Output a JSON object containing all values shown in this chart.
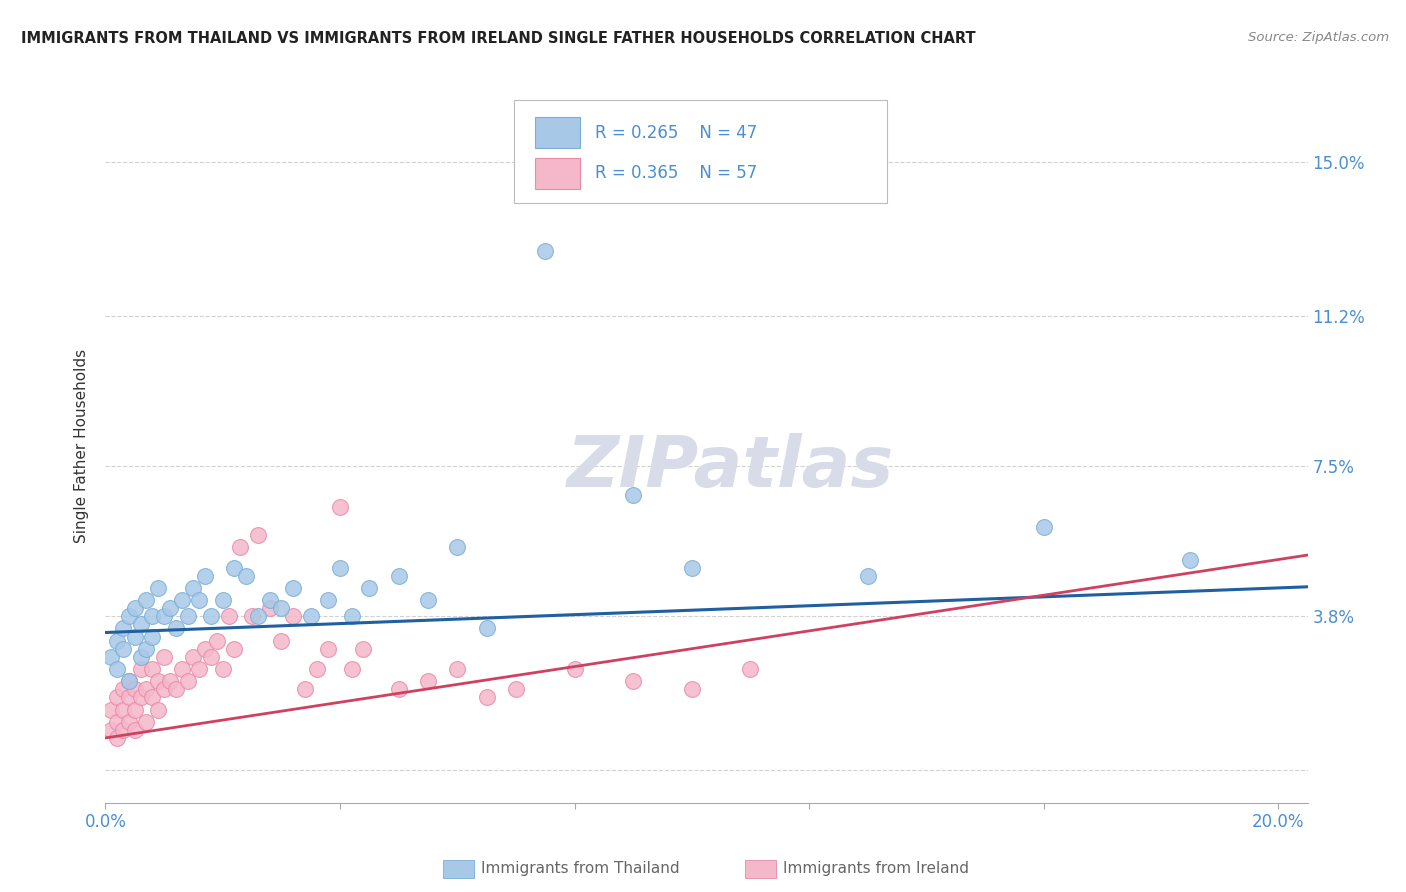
{
  "title": "IMMIGRANTS FROM THAILAND VS IMMIGRANTS FROM IRELAND SINGLE FATHER HOUSEHOLDS CORRELATION CHART",
  "source": "Source: ZipAtlas.com",
  "ylabel": "Single Father Households",
  "xlim": [
    0.0,
    0.205
  ],
  "ylim": [
    -0.008,
    0.168
  ],
  "ytick_values": [
    0.0,
    0.038,
    0.075,
    0.112,
    0.15
  ],
  "ytick_labels": [
    "",
    "3.8%",
    "7.5%",
    "11.2%",
    "15.0%"
  ],
  "xtick_values": [
    0.0,
    0.04,
    0.08,
    0.12,
    0.16,
    0.2
  ],
  "xtick_labels": [
    "0.0%",
    "",
    "",
    "",
    "",
    "20.0%"
  ],
  "thailand_color": "#a8c8e8",
  "thailand_edge_color": "#7aafd4",
  "ireland_color": "#f5b8cb",
  "ireland_edge_color": "#e88aa8",
  "thailand_line_color": "#2060a0",
  "ireland_line_color": "#d04060",
  "legend_thailand_label": "Immigrants from Thailand",
  "legend_ireland_label": "Immigrants from Ireland",
  "r_thailand": 0.265,
  "n_thailand": 47,
  "r_ireland": 0.365,
  "n_ireland": 57,
  "grid_color": "#cccccc",
  "background_color": "#ffffff",
  "axis_label_color": "#4a8fd4",
  "title_color": "#222222",
  "watermark_color": "#d8dce8",
  "thailand_line_intercept": 0.034,
  "thailand_line_slope": 0.055,
  "ireland_line_intercept": 0.008,
  "ireland_line_slope": 0.22
}
